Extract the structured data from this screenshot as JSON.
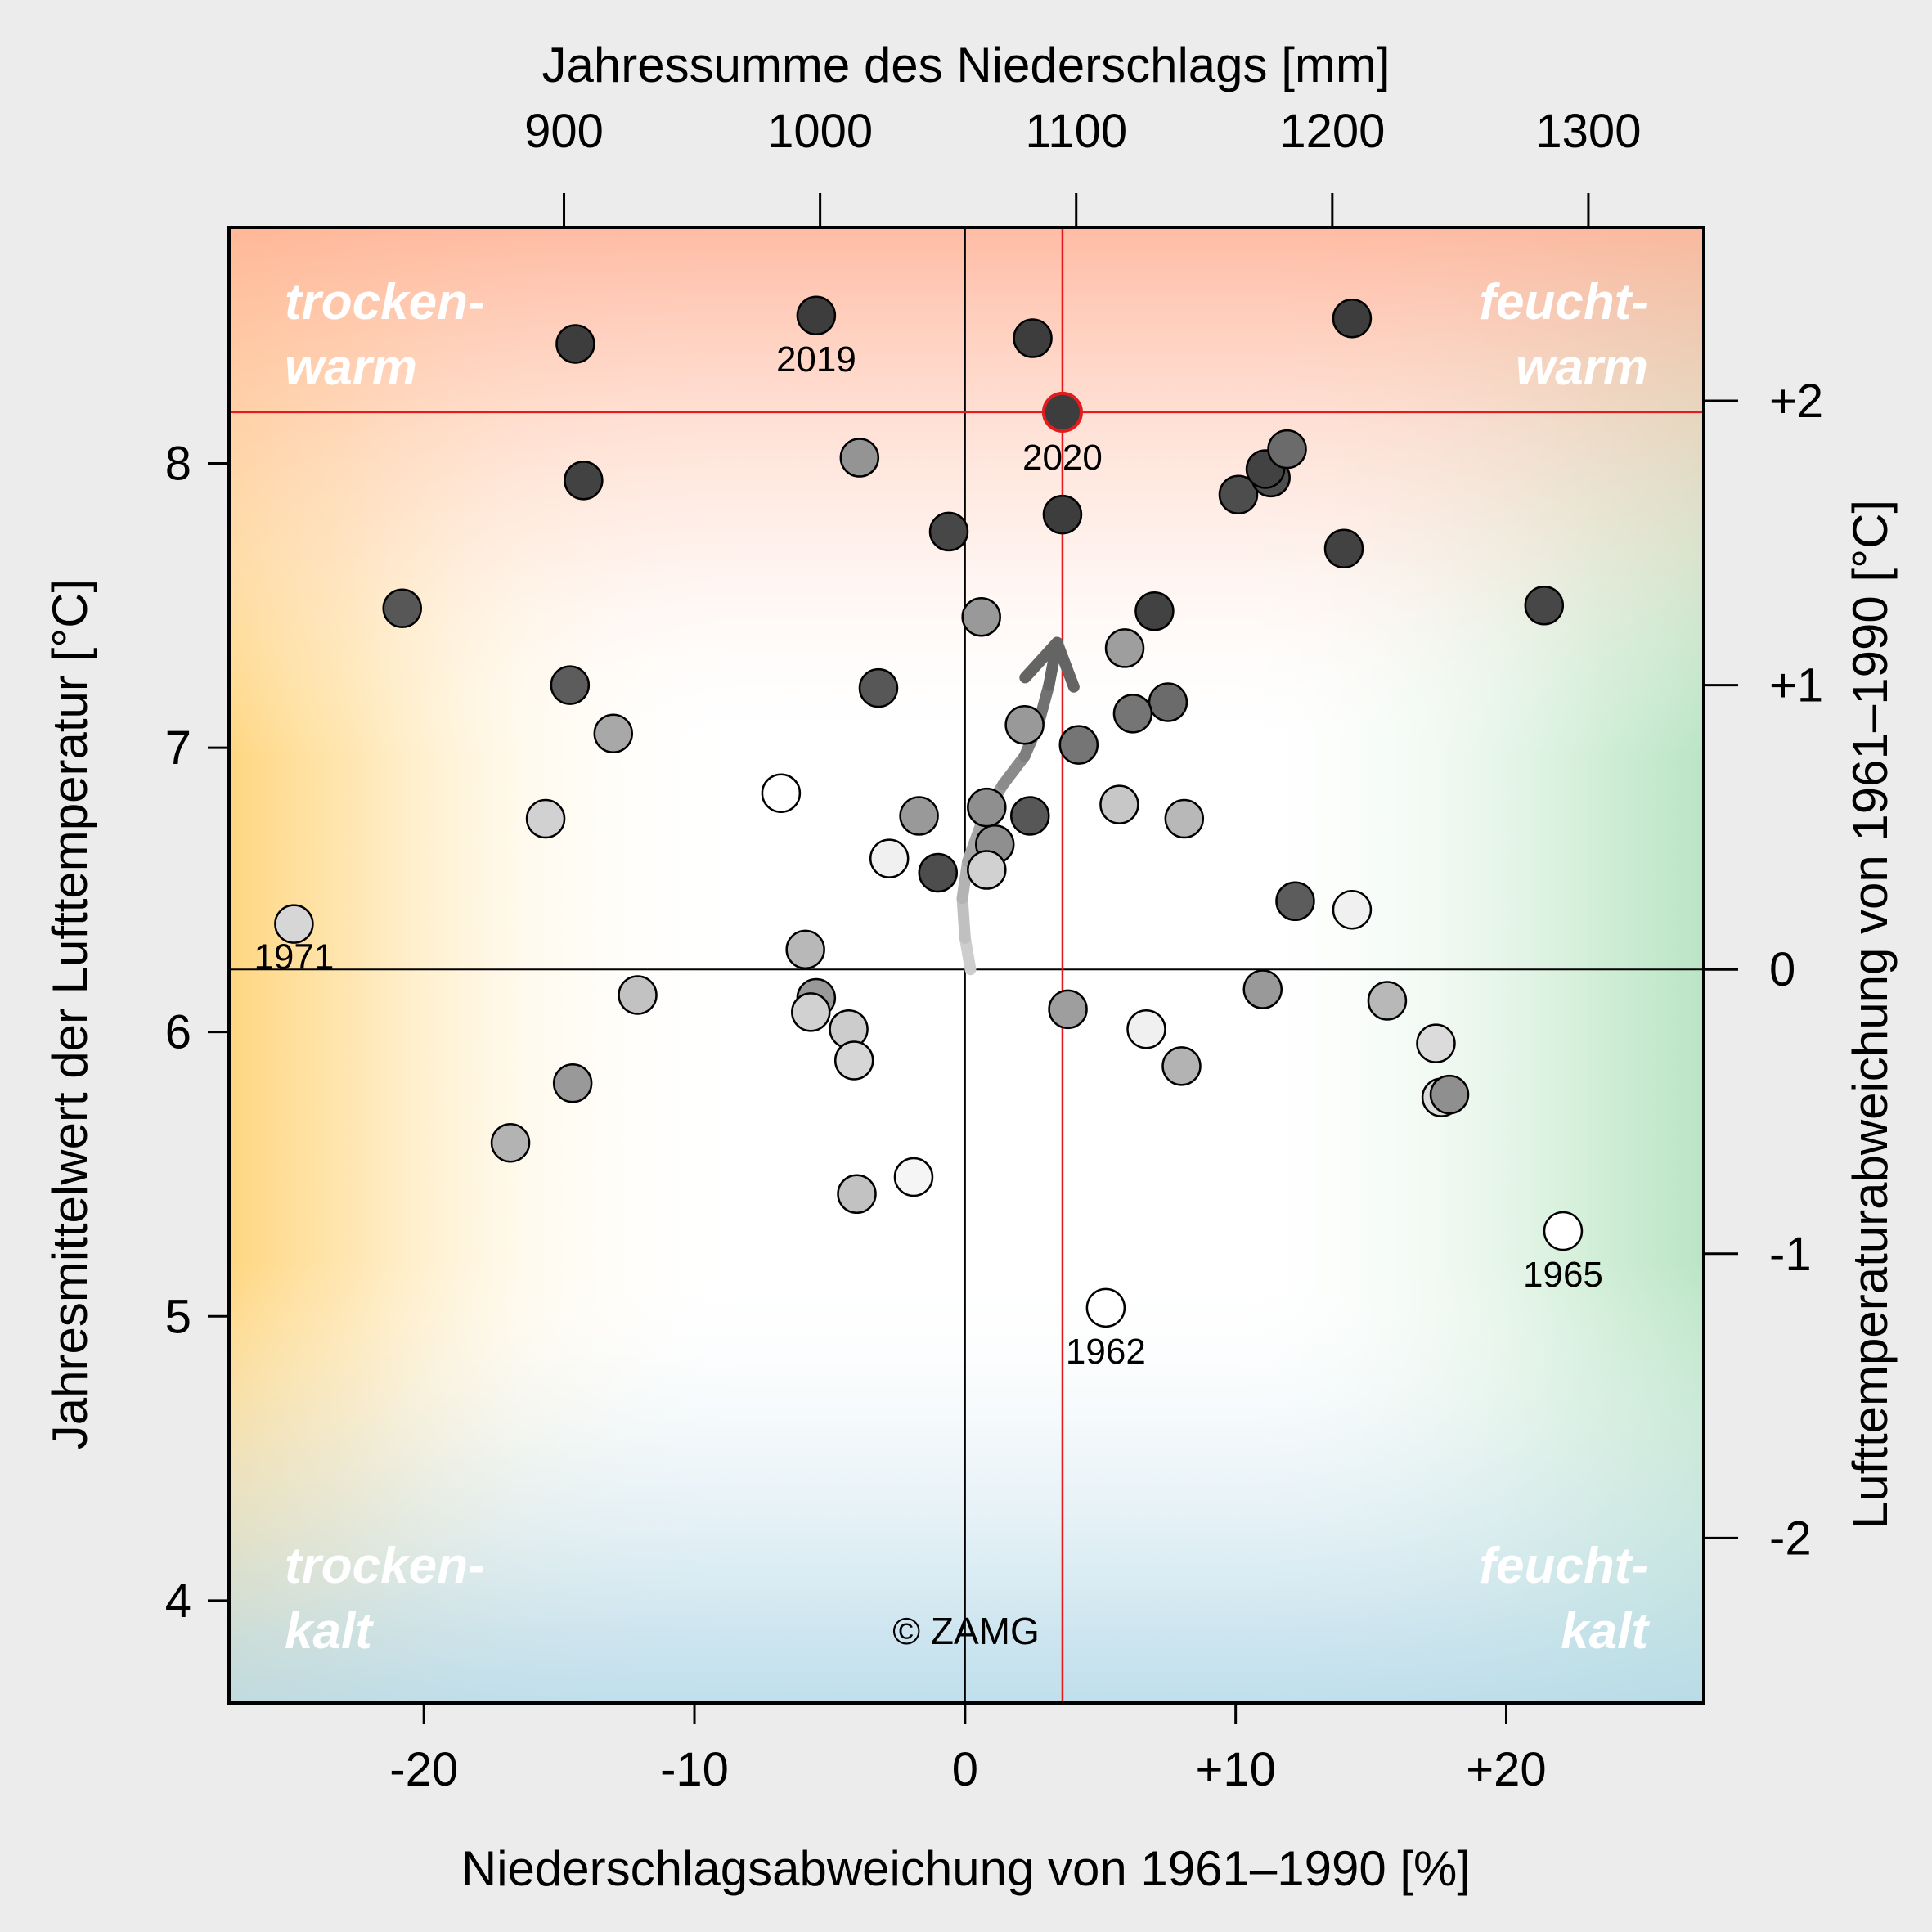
{
  "chart_data": {
    "type": "scatter",
    "title": "",
    "xlabel": "Niederschlagsabweichung von 1961–1990 [%]",
    "ylabel": "Jahresmittelwert der Lufttemperatur [°C]",
    "x2label": "Jahressumme des Niederschlags [mm]",
    "y2label": "Lufttemperaturabweichung von 1961–1990 [°C]",
    "xlim": [
      -27.2,
      27.3
    ],
    "ylim": [
      3.64,
      8.83
    ],
    "reference": {
      "temperature": 6.22,
      "precipitation_mm": 1056.6
    },
    "xticks": [
      {
        "value": -20,
        "label": "-20"
      },
      {
        "value": -10,
        "label": "-10"
      },
      {
        "value": 0,
        "label": "0"
      },
      {
        "value": 10,
        "label": "+10"
      },
      {
        "value": 20,
        "label": "+20"
      }
    ],
    "yticks": [
      {
        "value": 4,
        "label": "4"
      },
      {
        "value": 5,
        "label": "5"
      },
      {
        "value": 6,
        "label": "6"
      },
      {
        "value": 7,
        "label": "7"
      },
      {
        "value": 8,
        "label": "8"
      }
    ],
    "x2ticks": [
      {
        "value": 900,
        "label": "900"
      },
      {
        "value": 1000,
        "label": "1000"
      },
      {
        "value": 1100,
        "label": "1100"
      },
      {
        "value": 1200,
        "label": "1200"
      },
      {
        "value": 1300,
        "label": "1300"
      }
    ],
    "y2ticks": [
      {
        "value": 2,
        "label": "+2"
      },
      {
        "value": 1,
        "label": "+1"
      },
      {
        "value": 0,
        "label": "0"
      },
      {
        "value": -1,
        "label": "-1"
      },
      {
        "value": -2,
        "label": "-2"
      }
    ],
    "quadrants": {
      "top_left": [
        "trocken-",
        "warm"
      ],
      "top_right": [
        "feucht-",
        "warm"
      ],
      "bottom_left": [
        "trocken-",
        "kalt"
      ],
      "bottom_right": [
        "feucht-",
        "kalt"
      ]
    },
    "highlight": {
      "year": "2020",
      "x": 3.6,
      "y": 8.18,
      "color": "#e41a1c"
    },
    "labeled_points": [
      {
        "label": "2019",
        "x": -5.5,
        "y": 8.52
      },
      {
        "label": "1971",
        "x": -24.8,
        "y": 6.38
      },
      {
        "label": "1962",
        "x": 5.2,
        "y": 5.03
      },
      {
        "label": "1965",
        "x": 22.1,
        "y": 5.3
      }
    ],
    "points": [
      {
        "x": -5.5,
        "y": 8.52,
        "shade": 0.24
      },
      {
        "x": -14.4,
        "y": 8.42,
        "shade": 0.24
      },
      {
        "x": 2.5,
        "y": 8.44,
        "shade": 0.24
      },
      {
        "x": 14.3,
        "y": 8.51,
        "shade": 0.24
      },
      {
        "x": -14.1,
        "y": 7.94,
        "shade": 0.26
      },
      {
        "x": 3.6,
        "y": 7.82,
        "shade": 0.24
      },
      {
        "x": -0.6,
        "y": 7.76,
        "shade": 0.28
      },
      {
        "x": 10.1,
        "y": 7.89,
        "shade": 0.3
      },
      {
        "x": 11.3,
        "y": 7.95,
        "shade": 0.3
      },
      {
        "x": 11.1,
        "y": 7.98,
        "shade": 0.26
      },
      {
        "x": 11.9,
        "y": 8.05,
        "shade": 0.42
      },
      {
        "x": 14.0,
        "y": 7.7,
        "shade": 0.26
      },
      {
        "x": 21.4,
        "y": 7.5,
        "shade": 0.28
      },
      {
        "x": -3.9,
        "y": 8.02,
        "shade": 0.58
      },
      {
        "x": -20.8,
        "y": 7.49,
        "shade": 0.34
      },
      {
        "x": 7.0,
        "y": 7.48,
        "shade": 0.26
      },
      {
        "x": 0.6,
        "y": 7.46,
        "shade": 0.6
      },
      {
        "x": 5.9,
        "y": 7.35,
        "shade": 0.62
      },
      {
        "x": -14.6,
        "y": 7.22,
        "shade": 0.36
      },
      {
        "x": -3.2,
        "y": 7.21,
        "shade": 0.34
      },
      {
        "x": 7.5,
        "y": 7.16,
        "shade": 0.42
      },
      {
        "x": 6.2,
        "y": 7.12,
        "shade": 0.46
      },
      {
        "x": 2.2,
        "y": 7.08,
        "shade": 0.6
      },
      {
        "x": -13.0,
        "y": 7.05,
        "shade": 0.66
      },
      {
        "x": 4.2,
        "y": 7.01,
        "shade": 0.46
      },
      {
        "x": -6.8,
        "y": 6.84,
        "shade": 1.0
      },
      {
        "x": 0.8,
        "y": 6.79,
        "shade": 0.56
      },
      {
        "x": 5.7,
        "y": 6.8,
        "shade": 0.78
      },
      {
        "x": 8.1,
        "y": 6.75,
        "shade": 0.72
      },
      {
        "x": -15.5,
        "y": 6.75,
        "shade": 0.82
      },
      {
        "x": -1.7,
        "y": 6.76,
        "shade": 0.6
      },
      {
        "x": 2.4,
        "y": 6.76,
        "shade": 0.34
      },
      {
        "x": 1.1,
        "y": 6.66,
        "shade": 0.56
      },
      {
        "x": -2.8,
        "y": 6.61,
        "shade": 0.94
      },
      {
        "x": 0.8,
        "y": 6.57,
        "shade": 0.82
      },
      {
        "x": -1.0,
        "y": 6.56,
        "shade": 0.3
      },
      {
        "x": 12.2,
        "y": 6.46,
        "shade": 0.36
      },
      {
        "x": 14.3,
        "y": 6.43,
        "shade": 0.94
      },
      {
        "x": -24.8,
        "y": 6.38,
        "shade": 0.84
      },
      {
        "x": -5.9,
        "y": 6.29,
        "shade": 0.72
      },
      {
        "x": -12.1,
        "y": 6.13,
        "shade": 0.76
      },
      {
        "x": 11.0,
        "y": 6.15,
        "shade": 0.6
      },
      {
        "x": 15.6,
        "y": 6.11,
        "shade": 0.72
      },
      {
        "x": -5.5,
        "y": 6.12,
        "shade": 0.6
      },
      {
        "x": -5.7,
        "y": 6.07,
        "shade": 0.82
      },
      {
        "x": 3.8,
        "y": 6.08,
        "shade": 0.62
      },
      {
        "x": -4.3,
        "y": 6.01,
        "shade": 0.8
      },
      {
        "x": 6.7,
        "y": 6.01,
        "shade": 0.94
      },
      {
        "x": 17.4,
        "y": 5.96,
        "shade": 0.86
      },
      {
        "x": -4.1,
        "y": 5.9,
        "shade": 0.84
      },
      {
        "x": 8.0,
        "y": 5.88,
        "shade": 0.7
      },
      {
        "x": -14.5,
        "y": 5.82,
        "shade": 0.6
      },
      {
        "x": 17.6,
        "y": 5.77,
        "shade": 0.86
      },
      {
        "x": 17.9,
        "y": 5.78,
        "shade": 0.56
      },
      {
        "x": -16.8,
        "y": 5.61,
        "shade": 0.7
      },
      {
        "x": -1.9,
        "y": 5.49,
        "shade": 0.96
      },
      {
        "x": -4.0,
        "y": 5.43,
        "shade": 0.76
      },
      {
        "x": 22.1,
        "y": 5.3,
        "shade": 1.0
      },
      {
        "x": 5.2,
        "y": 5.03,
        "shade": 1.0
      },
      {
        "x": 3.6,
        "y": 8.18,
        "shade": 0.24
      }
    ],
    "trend_arrow": [
      {
        "x": 0.2,
        "y": 6.22
      },
      {
        "x": 0.0,
        "y": 6.33
      },
      {
        "x": -0.1,
        "y": 6.47
      },
      {
        "x": 0.1,
        "y": 6.6
      },
      {
        "x": 0.7,
        "y": 6.76
      },
      {
        "x": 1.4,
        "y": 6.87
      },
      {
        "x": 2.2,
        "y": 6.97
      },
      {
        "x": 2.7,
        "y": 7.08
      },
      {
        "x": 3.1,
        "y": 7.22
      },
      {
        "x": 3.4,
        "y": 7.37
      }
    ],
    "credit": "© ZAMG",
    "grid": false,
    "legend": "none"
  }
}
